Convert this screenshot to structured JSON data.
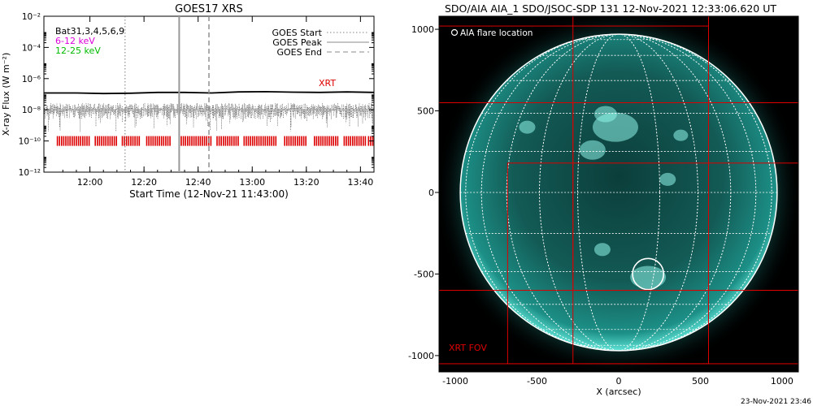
{
  "timestamp": "23-Nov-2021 23:46",
  "colors": {
    "xrt": "#dd0000",
    "low_band": "#dd00dd",
    "high_band": "#00bb00",
    "sun": "#1c8f86",
    "grid": "#ffffff"
  },
  "chart_data": [
    {
      "type": "line",
      "title": "GOES17 XRS",
      "xlabel": "Start Time (12-Nov-21 11:43:00)",
      "ylabel": "X-ray Flux (W m⁻²)",
      "ylim": [
        1e-12,
        0.01
      ],
      "y_scale": "log",
      "y_ticks": [
        "10⁻¹²",
        "10⁻¹⁰",
        "10⁻⁸",
        "10⁻⁶",
        "10⁻⁴",
        "10⁻²"
      ],
      "y_tick_values": [
        1e-12,
        1e-10,
        1e-08,
        1e-06,
        0.0001,
        0.01
      ],
      "x_range": [
        "11:43",
        "13:45"
      ],
      "x_ticks": [
        "12:00",
        "12:20",
        "12:40",
        "13:00",
        "13:20",
        "13:40"
      ],
      "x_tick_times": [
        "12:00",
        "12:20",
        "12:40",
        "13:00",
        "13:20",
        "13:40"
      ],
      "legend": [
        {
          "name": "GOES Start",
          "style": "dotted"
        },
        {
          "name": "GOES Peak",
          "style": "solid"
        },
        {
          "name": "GOES End",
          "style": "dashed"
        }
      ],
      "band_labels": {
        "bat": "Bat31,3,4,5,6,9",
        "low": "6-12 keV",
        "high": "12-25 keV"
      },
      "xrt_label": "XRT",
      "events": {
        "start": "12:13",
        "peak": "12:33",
        "end": "12:44"
      },
      "series": [
        {
          "style": "solid",
          "x": [
            "11:43",
            "11:55",
            "12:05",
            "12:15",
            "12:25",
            "12:35",
            "12:45",
            "12:55",
            "13:05",
            "13:15",
            "13:25",
            "13:35",
            "13:45"
          ],
          "values": [
            1.2e-07,
            1.2e-07,
            1.1e-07,
            1.15e-07,
            1.3e-07,
            1.3e-07,
            1.2e-07,
            1.4e-07,
            1.45e-07,
            1.35e-07,
            1.3e-07,
            1.4e-07,
            1.3e-07
          ]
        },
        {
          "style": "dotted-noisy",
          "x": [
            "11:43",
            "13:45"
          ],
          "values": [
            1e-08,
            1e-08
          ]
        }
      ],
      "xrt_intervals": [
        [
          "11:48",
          "12:00"
        ],
        [
          "12:02",
          "12:10"
        ],
        [
          "12:12",
          "12:19"
        ],
        [
          "12:21",
          "12:30"
        ],
        [
          "12:33",
          "12:45"
        ],
        [
          "12:47",
          "12:55"
        ],
        [
          "12:57",
          "13:09"
        ],
        [
          "13:12",
          "13:20"
        ],
        [
          "13:23",
          "13:32"
        ],
        [
          "13:34",
          "13:42"
        ],
        [
          "13:43",
          "13:45"
        ]
      ]
    },
    {
      "type": "scatter",
      "title": "SDO/AIA AIA_1 SDO/JSOC-SDP 131 12-Nov-2021 12:33:06.620 UT",
      "xlabel": "X (arcsec)",
      "ylabel": "",
      "xlim": [
        -1100,
        1100
      ],
      "ylim": [
        -1100,
        1080
      ],
      "x_ticks": [
        -1000,
        -500,
        0,
        500,
        1000
      ],
      "y_ticks": [
        -1000,
        -500,
        0,
        500,
        1000
      ],
      "legend": [
        {
          "name": "AIA flare location",
          "marker": "circle"
        }
      ],
      "fov_label": "XRT FOV",
      "solar_radius": 970,
      "flare": {
        "x": 180,
        "y": -500,
        "radius": 95
      },
      "fov_boxes": [
        {
          "x0": -1100,
          "x1": 550,
          "y0": -1050,
          "y1": 1020
        },
        {
          "x0": -680,
          "x1": 1100,
          "y0": -1050,
          "y1": 180
        },
        {
          "x0": -280,
          "x1": 1100,
          "y0": -600,
          "y1": 550
        },
        {
          "x0": -1100,
          "x1": 1100,
          "y0": -600,
          "y1": 550
        },
        {
          "x0": -280,
          "x1": 550,
          "y0": -1050,
          "y1": 1080
        }
      ]
    }
  ]
}
